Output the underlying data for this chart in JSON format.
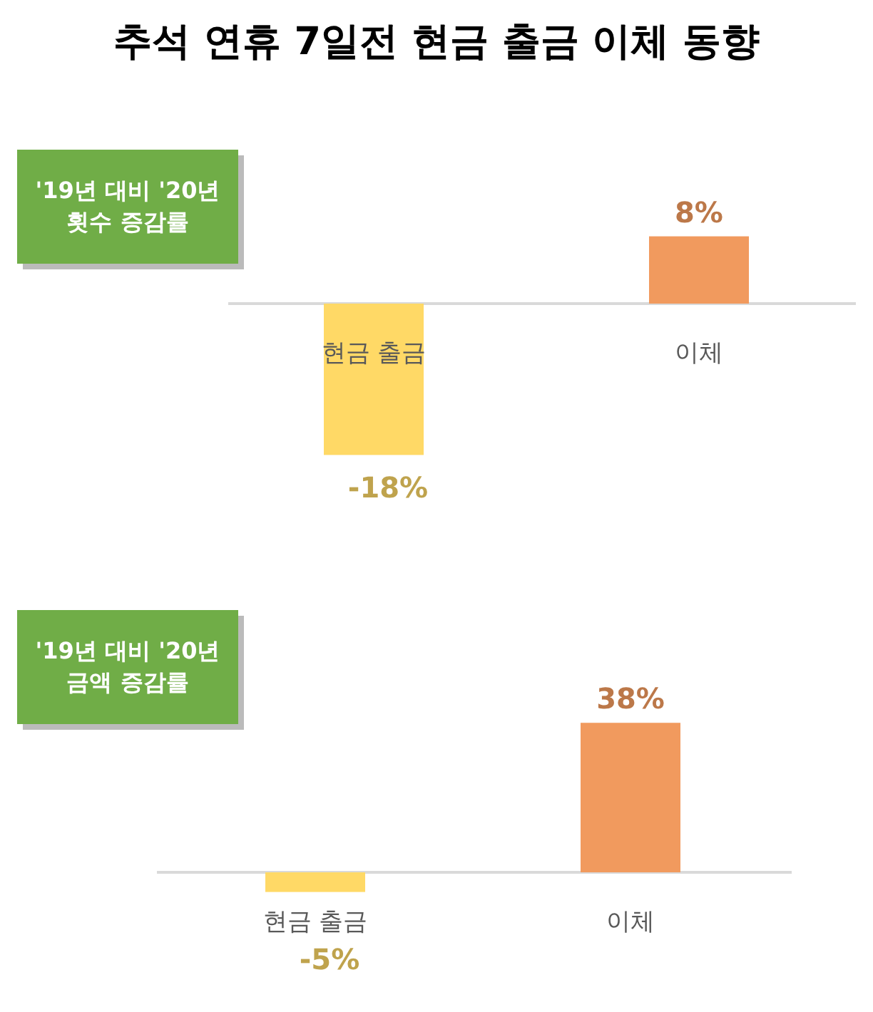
{
  "chart_data": [
    {
      "type": "bar",
      "title": "추석 연휴 7일전 현금 출금 이체 동향",
      "subtitle": "'19년 대비 '20년 횟수 증감률",
      "categories": [
        "현금 출금",
        "이체"
      ],
      "values": [
        -18,
        8
      ],
      "colors": [
        "#ffd966",
        "#f19a5e"
      ],
      "value_labels": [
        "-18%",
        "8%"
      ]
    },
    {
      "type": "bar",
      "subtitle": "'19년 대비 '20년 금액 증감률",
      "categories": [
        "현금 출금",
        "이체"
      ],
      "values": [
        -5,
        38
      ],
      "colors": [
        "#ffd966",
        "#f19a5e"
      ],
      "value_labels": [
        "-5%",
        "38%"
      ]
    }
  ]
}
